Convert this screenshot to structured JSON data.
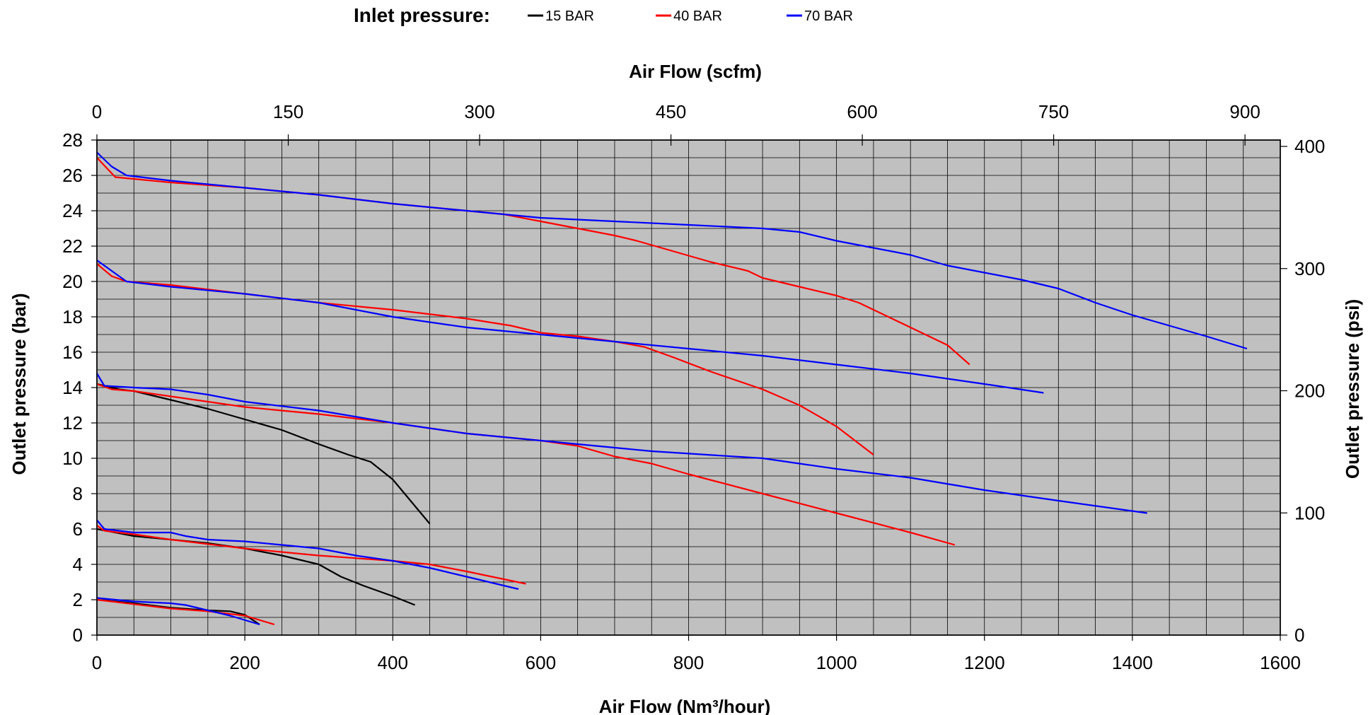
{
  "legend": {
    "title": "Inlet pressure:",
    "items": [
      {
        "label": "15 BAR",
        "color": "#000000"
      },
      {
        "label": "40 BAR",
        "color": "#ff0000"
      },
      {
        "label": "70 BAR",
        "color": "#0000ff"
      }
    ]
  },
  "chart_data": {
    "type": "line",
    "title": "",
    "xlabel": "Air Flow (Nm³/hour)",
    "ylabel": "Outlet pressure (bar)",
    "x2label": "Air Flow (scfm)",
    "y2label": "Outlet pressure (psi)",
    "xlim": [
      0,
      1600
    ],
    "ylim": [
      0,
      28
    ],
    "x2lim": [
      0,
      900
    ],
    "y2lim": [
      0,
      400
    ],
    "xticks": [
      "0",
      "200",
      "400",
      "600",
      "800",
      "1000",
      "1200",
      "1400",
      "1600"
    ],
    "yticks": [
      "0",
      "2",
      "4",
      "6",
      "8",
      "10",
      "12",
      "14",
      "16",
      "18",
      "20",
      "22",
      "24",
      "26",
      "28"
    ],
    "x2ticks": [
      "0",
      "150",
      "300",
      "450",
      "600",
      "750",
      "900"
    ],
    "y2ticks": [
      "0",
      "100",
      "200",
      "300",
      "400"
    ],
    "grid": true,
    "plot_background": "#c0c0c0",
    "legend_position": "top",
    "series": [
      {
        "inlet": "15 BAR",
        "color": "#000000",
        "points": [
          [
            0,
            2.0
          ],
          [
            50,
            1.8
          ],
          [
            100,
            1.55
          ],
          [
            150,
            1.4
          ],
          [
            180,
            1.35
          ],
          [
            200,
            1.15
          ],
          [
            220,
            0.6
          ]
        ]
      },
      {
        "inlet": "15 BAR",
        "color": "#000000",
        "points": [
          [
            0,
            6.0
          ],
          [
            50,
            5.6
          ],
          [
            100,
            5.4
          ],
          [
            150,
            5.2
          ],
          [
            200,
            4.9
          ],
          [
            250,
            4.5
          ],
          [
            300,
            4.0
          ],
          [
            330,
            3.3
          ],
          [
            360,
            2.8
          ],
          [
            400,
            2.2
          ],
          [
            430,
            1.7
          ]
        ]
      },
      {
        "inlet": "15 BAR",
        "color": "#000000",
        "points": [
          [
            0,
            14.2
          ],
          [
            30,
            13.9
          ],
          [
            50,
            13.8
          ],
          [
            100,
            13.3
          ],
          [
            150,
            12.8
          ],
          [
            200,
            12.2
          ],
          [
            250,
            11.6
          ],
          [
            300,
            10.8
          ],
          [
            340,
            10.2
          ],
          [
            370,
            9.8
          ],
          [
            400,
            8.8
          ],
          [
            430,
            7.3
          ],
          [
            450,
            6.3
          ]
        ]
      },
      {
        "inlet": "40 BAR",
        "color": "#ff0000",
        "points": [
          [
            0,
            2.0
          ],
          [
            50,
            1.75
          ],
          [
            100,
            1.5
          ],
          [
            150,
            1.35
          ],
          [
            200,
            1.1
          ],
          [
            240,
            0.6
          ]
        ]
      },
      {
        "inlet": "40 BAR",
        "color": "#ff0000",
        "points": [
          [
            0,
            6.2
          ],
          [
            10,
            5.9
          ],
          [
            50,
            5.7
          ],
          [
            100,
            5.4
          ],
          [
            200,
            4.9
          ],
          [
            300,
            4.5
          ],
          [
            400,
            4.2
          ],
          [
            450,
            4.0
          ],
          [
            500,
            3.6
          ],
          [
            580,
            2.9
          ]
        ]
      },
      {
        "inlet": "40 BAR",
        "color": "#ff0000",
        "points": [
          [
            0,
            14.2
          ],
          [
            20,
            13.9
          ],
          [
            50,
            13.8
          ],
          [
            100,
            13.5
          ],
          [
            200,
            12.9
          ],
          [
            300,
            12.5
          ],
          [
            400,
            12.0
          ],
          [
            500,
            11.4
          ],
          [
            600,
            11.0
          ],
          [
            650,
            10.7
          ],
          [
            700,
            10.1
          ],
          [
            750,
            9.7
          ],
          [
            800,
            9.1
          ],
          [
            900,
            8.0
          ],
          [
            1000,
            6.9
          ],
          [
            1100,
            5.8
          ],
          [
            1160,
            5.1
          ]
        ]
      },
      {
        "inlet": "40 BAR",
        "color": "#ff0000",
        "points": [
          [
            0,
            21.0
          ],
          [
            20,
            20.3
          ],
          [
            40,
            20.0
          ],
          [
            100,
            19.8
          ],
          [
            200,
            19.3
          ],
          [
            300,
            18.8
          ],
          [
            400,
            18.4
          ],
          [
            500,
            17.9
          ],
          [
            560,
            17.5
          ],
          [
            600,
            17.1
          ],
          [
            650,
            16.9
          ],
          [
            700,
            16.6
          ],
          [
            740,
            16.3
          ],
          [
            780,
            15.7
          ],
          [
            830,
            14.9
          ],
          [
            900,
            13.9
          ],
          [
            950,
            13.0
          ],
          [
            1000,
            11.8
          ],
          [
            1050,
            10.2
          ]
        ]
      },
      {
        "inlet": "40 BAR",
        "color": "#ff0000",
        "points": [
          [
            0,
            27.0
          ],
          [
            25,
            25.9
          ],
          [
            50,
            25.8
          ],
          [
            100,
            25.6
          ],
          [
            200,
            25.3
          ],
          [
            300,
            24.9
          ],
          [
            400,
            24.4
          ],
          [
            500,
            24.0
          ],
          [
            550,
            23.8
          ],
          [
            600,
            23.4
          ],
          [
            650,
            23.0
          ],
          [
            700,
            22.6
          ],
          [
            730,
            22.3
          ],
          [
            780,
            21.7
          ],
          [
            830,
            21.1
          ],
          [
            880,
            20.6
          ],
          [
            900,
            20.2
          ],
          [
            950,
            19.7
          ],
          [
            1000,
            19.2
          ],
          [
            1030,
            18.8
          ],
          [
            1080,
            17.8
          ],
          [
            1150,
            16.4
          ],
          [
            1180,
            15.3
          ]
        ]
      },
      {
        "inlet": "70 BAR",
        "color": "#0000ff",
        "points": [
          [
            0,
            2.1
          ],
          [
            50,
            1.9
          ],
          [
            100,
            1.8
          ],
          [
            120,
            1.7
          ],
          [
            150,
            1.4
          ],
          [
            180,
            1.1
          ],
          [
            220,
            0.6
          ]
        ]
      },
      {
        "inlet": "70 BAR",
        "color": "#0000ff",
        "points": [
          [
            0,
            6.5
          ],
          [
            10,
            6.0
          ],
          [
            50,
            5.8
          ],
          [
            100,
            5.8
          ],
          [
            120,
            5.6
          ],
          [
            150,
            5.4
          ],
          [
            200,
            5.3
          ],
          [
            250,
            5.1
          ],
          [
            300,
            4.9
          ],
          [
            350,
            4.5
          ],
          [
            400,
            4.2
          ],
          [
            450,
            3.8
          ],
          [
            500,
            3.3
          ],
          [
            570,
            2.6
          ]
        ]
      },
      {
        "inlet": "70 BAR",
        "color": "#0000ff",
        "points": [
          [
            0,
            14.8
          ],
          [
            10,
            14.1
          ],
          [
            50,
            14.0
          ],
          [
            100,
            13.9
          ],
          [
            150,
            13.6
          ],
          [
            200,
            13.2
          ],
          [
            300,
            12.7
          ],
          [
            400,
            12.0
          ],
          [
            500,
            11.4
          ],
          [
            600,
            11.0
          ],
          [
            650,
            10.8
          ],
          [
            700,
            10.6
          ],
          [
            750,
            10.4
          ],
          [
            900,
            10.0
          ],
          [
            1000,
            9.4
          ],
          [
            1100,
            8.9
          ],
          [
            1200,
            8.2
          ],
          [
            1300,
            7.6
          ],
          [
            1420,
            6.9
          ]
        ]
      },
      {
        "inlet": "70 BAR",
        "color": "#0000ff",
        "points": [
          [
            0,
            21.2
          ],
          [
            20,
            20.6
          ],
          [
            40,
            20.0
          ],
          [
            100,
            19.7
          ],
          [
            200,
            19.3
          ],
          [
            300,
            18.8
          ],
          [
            400,
            18.0
          ],
          [
            500,
            17.4
          ],
          [
            600,
            17.0
          ],
          [
            700,
            16.6
          ],
          [
            800,
            16.2
          ],
          [
            900,
            15.8
          ],
          [
            1000,
            15.3
          ],
          [
            1100,
            14.8
          ],
          [
            1200,
            14.2
          ],
          [
            1280,
            13.7
          ]
        ]
      },
      {
        "inlet": "70 BAR",
        "color": "#0000ff",
        "points": [
          [
            0,
            27.3
          ],
          [
            20,
            26.5
          ],
          [
            40,
            26.0
          ],
          [
            100,
            25.7
          ],
          [
            200,
            25.3
          ],
          [
            300,
            24.9
          ],
          [
            400,
            24.4
          ],
          [
            500,
            24.0
          ],
          [
            600,
            23.6
          ],
          [
            700,
            23.4
          ],
          [
            800,
            23.2
          ],
          [
            900,
            23.0
          ],
          [
            950,
            22.8
          ],
          [
            1000,
            22.3
          ],
          [
            1050,
            21.9
          ],
          [
            1100,
            21.5
          ],
          [
            1150,
            20.9
          ],
          [
            1200,
            20.5
          ],
          [
            1250,
            20.1
          ],
          [
            1300,
            19.6
          ],
          [
            1350,
            18.8
          ],
          [
            1400,
            18.1
          ],
          [
            1450,
            17.5
          ],
          [
            1500,
            16.9
          ],
          [
            1555,
            16.2
          ]
        ]
      }
    ]
  }
}
